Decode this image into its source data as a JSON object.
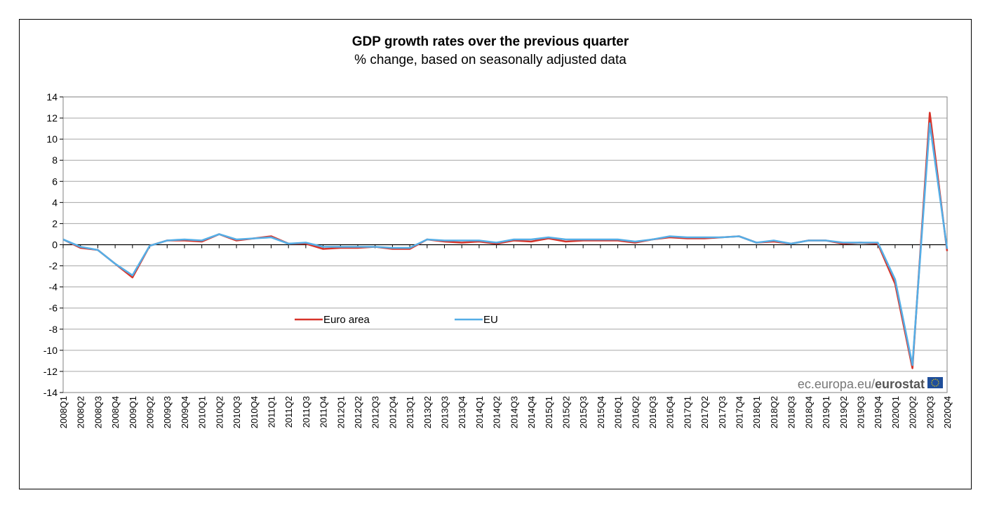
{
  "chart_data": {
    "type": "line",
    "title": "GDP growth rates over the previous quarter",
    "subtitle": "% change, based on seasonally adjusted data",
    "xlabel": "",
    "ylabel": "",
    "ylim": [
      -14,
      14
    ],
    "yticks": [
      14,
      12,
      10,
      8,
      6,
      4,
      2,
      0,
      -2,
      -4,
      -6,
      -8,
      -10,
      -12,
      -14
    ],
    "grid": true,
    "legend_position": "center-left",
    "categories": [
      "2008Q1",
      "2008Q2",
      "2008Q3",
      "2008Q4",
      "2009Q1",
      "2009Q2",
      "2009Q3",
      "2009Q4",
      "2010Q1",
      "2010Q2",
      "2010Q3",
      "2010Q4",
      "2011Q1",
      "2011Q2",
      "2011Q3",
      "2011Q4",
      "2012Q1",
      "2012Q2",
      "2012Q3",
      "2012Q4",
      "2013Q1",
      "2013Q2",
      "2013Q3",
      "2013Q4",
      "2014Q1",
      "2014Q2",
      "2014Q3",
      "2014Q4",
      "2015Q1",
      "2015Q2",
      "2015Q3",
      "2015Q4",
      "2016Q1",
      "2016Q2",
      "2016Q3",
      "2016Q4",
      "2017Q1",
      "2017Q2",
      "2017Q3",
      "2017Q4",
      "2018Q1",
      "2018Q2",
      "2018Q3",
      "2018Q4",
      "2019Q1",
      "2019Q2",
      "2019Q3",
      "2019Q4",
      "2020Q1",
      "2020Q2",
      "2020Q3",
      "2020Q4"
    ],
    "series": [
      {
        "name": "Euro area",
        "color": "#d7342a",
        "values": [
          0.5,
          -0.3,
          -0.5,
          -1.8,
          -3.1,
          -0.1,
          0.4,
          0.4,
          0.3,
          1.0,
          0.4,
          0.6,
          0.8,
          0.1,
          0.1,
          -0.4,
          -0.3,
          -0.3,
          -0.2,
          -0.4,
          -0.4,
          0.5,
          0.3,
          0.2,
          0.3,
          0.1,
          0.4,
          0.3,
          0.6,
          0.3,
          0.4,
          0.4,
          0.4,
          0.2,
          0.5,
          0.7,
          0.6,
          0.6,
          0.7,
          0.8,
          0.2,
          0.3,
          0.1,
          0.4,
          0.4,
          0.1,
          0.2,
          0.1,
          -3.7,
          -11.7,
          12.5,
          -0.6
        ]
      },
      {
        "name": "EU",
        "color": "#55aee6",
        "values": [
          0.5,
          -0.2,
          -0.5,
          -1.8,
          -2.9,
          -0.1,
          0.4,
          0.5,
          0.4,
          1.0,
          0.5,
          0.6,
          0.7,
          0.1,
          0.2,
          -0.2,
          -0.2,
          -0.2,
          -0.2,
          -0.3,
          -0.3,
          0.5,
          0.4,
          0.4,
          0.4,
          0.2,
          0.5,
          0.5,
          0.7,
          0.5,
          0.5,
          0.5,
          0.5,
          0.3,
          0.5,
          0.8,
          0.7,
          0.7,
          0.7,
          0.8,
          0.2,
          0.4,
          0.1,
          0.4,
          0.4,
          0.2,
          0.2,
          0.2,
          -3.3,
          -11.4,
          11.5,
          -0.4
        ]
      }
    ]
  },
  "branding": {
    "prefix": "ec.europa.eu/",
    "bold": "eurostat",
    "flag_color": "#1f4e9a"
  }
}
